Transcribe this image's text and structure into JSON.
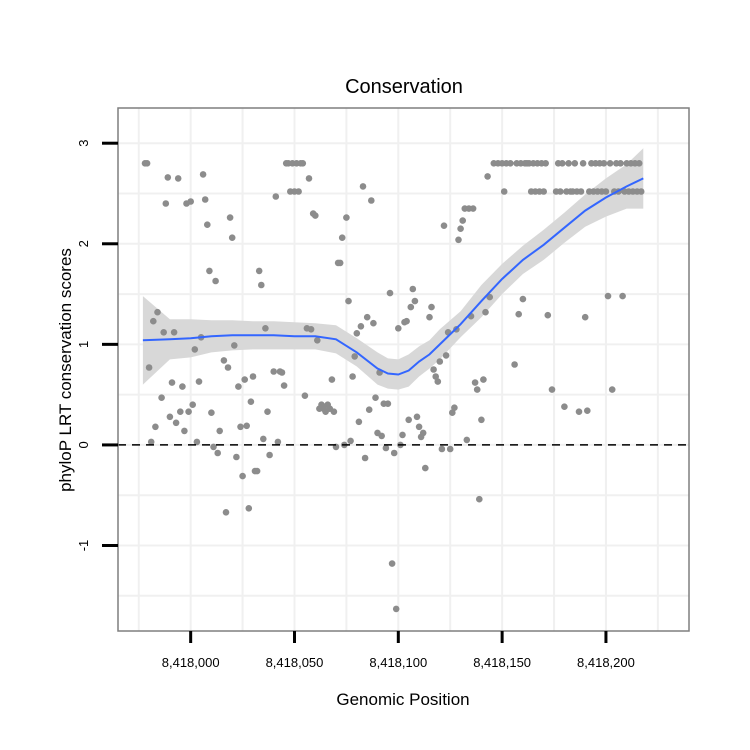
{
  "chart_data": {
    "type": "scatter",
    "title": "Conservation",
    "xlabel": "Genomic Position",
    "ylabel": "phyloP LRT conservation scores",
    "xlim": [
      8417965,
      8418240
    ],
    "ylim": [
      -1.85,
      3.35
    ],
    "x_ticks": [
      8418000,
      8418050,
      8418100,
      8418150,
      8418200
    ],
    "x_tick_labels": [
      "8,418,000",
      "8,418,050",
      "8,418,100",
      "8,418,150",
      "8,418,200"
    ],
    "y_ticks": [
      -1,
      0,
      1,
      2,
      3
    ],
    "y_tick_labels": [
      "-1",
      "0",
      "1",
      "2",
      "3"
    ],
    "reference_line": {
      "y": 0,
      "style": "dashed"
    },
    "colors": {
      "points": "#8c8c8c",
      "smooth": "#3366ff",
      "band": "#d6d6d6",
      "panel_border": "#7f7f7f",
      "grid": "#f0f0f0"
    },
    "series": [
      {
        "name": "scores",
        "points": [
          [
            8417978,
            2.8
          ],
          [
            8417979,
            2.8
          ],
          [
            8417980,
            0.77
          ],
          [
            8417981,
            0.03
          ],
          [
            8417982,
            1.23
          ],
          [
            8417983,
            0.18
          ],
          [
            8417984,
            1.32
          ],
          [
            8417986,
            0.47
          ],
          [
            8417987,
            1.12
          ],
          [
            8417988,
            2.4
          ],
          [
            8417989,
            2.66
          ],
          [
            8417990,
            0.28
          ],
          [
            8417991,
            0.62
          ],
          [
            8417992,
            1.12
          ],
          [
            8417993,
            0.22
          ],
          [
            8417994,
            2.65
          ],
          [
            8417995,
            0.33
          ],
          [
            8417996,
            0.58
          ],
          [
            8417997,
            0.14
          ],
          [
            8417998,
            2.4
          ],
          [
            8417999,
            0.33
          ],
          [
            8418000,
            2.42
          ],
          [
            8418001,
            0.4
          ],
          [
            8418002,
            0.95
          ],
          [
            8418003,
            0.03
          ],
          [
            8418004,
            0.63
          ],
          [
            8418005,
            1.07
          ],
          [
            8418006,
            2.69
          ],
          [
            8418007,
            2.44
          ],
          [
            8418008,
            2.19
          ],
          [
            8418009,
            1.73
          ],
          [
            8418010,
            0.32
          ],
          [
            8418011,
            -0.02
          ],
          [
            8418012,
            1.63
          ],
          [
            8418013,
            -0.08
          ],
          [
            8418014,
            0.14
          ],
          [
            8418016,
            0.84
          ],
          [
            8418017,
            -0.67
          ],
          [
            8418018,
            0.77
          ],
          [
            8418019,
            2.26
          ],
          [
            8418020,
            2.06
          ],
          [
            8418021,
            0.99
          ],
          [
            8418022,
            -0.12
          ],
          [
            8418023,
            0.58
          ],
          [
            8418024,
            0.18
          ],
          [
            8418025,
            -0.31
          ],
          [
            8418026,
            0.65
          ],
          [
            8418027,
            0.19
          ],
          [
            8418028,
            -0.63
          ],
          [
            8418029,
            0.43
          ],
          [
            8418030,
            0.68
          ],
          [
            8418031,
            -0.26
          ],
          [
            8418032,
            -0.26
          ],
          [
            8418033,
            1.73
          ],
          [
            8418034,
            1.59
          ],
          [
            8418035,
            0.06
          ],
          [
            8418036,
            1.16
          ],
          [
            8418037,
            0.33
          ],
          [
            8418038,
            -0.1
          ],
          [
            8418040,
            0.73
          ],
          [
            8418041,
            2.47
          ],
          [
            8418042,
            0.03
          ],
          [
            8418043,
            0.73
          ],
          [
            8418044,
            0.72
          ],
          [
            8418045,
            0.59
          ],
          [
            8418046,
            2.8
          ],
          [
            8418047,
            2.8
          ],
          [
            8418048,
            2.52
          ],
          [
            8418049,
            2.8
          ],
          [
            8418050,
            2.52
          ],
          [
            8418051,
            2.8
          ],
          [
            8418052,
            2.52
          ],
          [
            8418053,
            2.8
          ],
          [
            8418054,
            2.8
          ],
          [
            8418055,
            0.49
          ],
          [
            8418056,
            1.16
          ],
          [
            8418057,
            2.65
          ],
          [
            8418058,
            1.15
          ],
          [
            8418059,
            2.3
          ],
          [
            8418060,
            2.28
          ],
          [
            8418061,
            1.04
          ],
          [
            8418062,
            0.36
          ],
          [
            8418063,
            0.4
          ],
          [
            8418064,
            0.36
          ],
          [
            8418065,
            0.33
          ],
          [
            8418066,
            0.4
          ],
          [
            8418067,
            0.36
          ],
          [
            8418068,
            0.65
          ],
          [
            8418069,
            0.33
          ],
          [
            8418070,
            -0.02
          ],
          [
            8418071,
            1.81
          ],
          [
            8418072,
            1.81
          ],
          [
            8418073,
            2.06
          ],
          [
            8418074,
            0.0
          ],
          [
            8418075,
            2.26
          ],
          [
            8418076,
            1.43
          ],
          [
            8418077,
            0.04
          ],
          [
            8418078,
            0.68
          ],
          [
            8418079,
            0.88
          ],
          [
            8418080,
            1.11
          ],
          [
            8418081,
            0.23
          ],
          [
            8418082,
            1.18
          ],
          [
            8418083,
            2.57
          ],
          [
            8418084,
            -0.13
          ],
          [
            8418085,
            1.27
          ],
          [
            8418086,
            0.35
          ],
          [
            8418087,
            2.43
          ],
          [
            8418088,
            1.21
          ],
          [
            8418089,
            0.47
          ],
          [
            8418090,
            0.12
          ],
          [
            8418091,
            0.72
          ],
          [
            8418092,
            0.09
          ],
          [
            8418093,
            0.41
          ],
          [
            8418094,
            -0.03
          ],
          [
            8418095,
            0.41
          ],
          [
            8418096,
            1.51
          ],
          [
            8418097,
            -1.18
          ],
          [
            8418098,
            -0.08
          ],
          [
            8418099,
            -1.63
          ],
          [
            8418100,
            1.16
          ],
          [
            8418101,
            0.0
          ],
          [
            8418102,
            0.1
          ],
          [
            8418103,
            1.22
          ],
          [
            8418104,
            1.23
          ],
          [
            8418105,
            0.25
          ],
          [
            8418106,
            1.37
          ],
          [
            8418107,
            1.55
          ],
          [
            8418108,
            1.43
          ],
          [
            8418109,
            0.28
          ],
          [
            8418110,
            0.18
          ],
          [
            8418111,
            0.08
          ],
          [
            8418112,
            0.12
          ],
          [
            8418113,
            -0.23
          ],
          [
            8418115,
            1.27
          ],
          [
            8418116,
            1.37
          ],
          [
            8418117,
            0.75
          ],
          [
            8418118,
            0.68
          ],
          [
            8418119,
            0.63
          ],
          [
            8418120,
            0.83
          ],
          [
            8418121,
            -0.04
          ],
          [
            8418122,
            2.18
          ],
          [
            8418123,
            0.89
          ],
          [
            8418124,
            1.12
          ],
          [
            8418125,
            -0.04
          ],
          [
            8418126,
            0.32
          ],
          [
            8418127,
            0.37
          ],
          [
            8418128,
            1.15
          ],
          [
            8418129,
            2.04
          ],
          [
            8418130,
            2.15
          ],
          [
            8418131,
            2.23
          ],
          [
            8418132,
            2.35
          ],
          [
            8418133,
            0.05
          ],
          [
            8418134,
            2.35
          ],
          [
            8418135,
            1.28
          ],
          [
            8418136,
            2.35
          ],
          [
            8418137,
            0.62
          ],
          [
            8418138,
            0.55
          ],
          [
            8418139,
            -0.54
          ],
          [
            8418140,
            0.25
          ],
          [
            8418141,
            0.65
          ],
          [
            8418142,
            1.32
          ],
          [
            8418143,
            2.67
          ],
          [
            8418144,
            1.47
          ],
          [
            8418146,
            2.8
          ],
          [
            8418148,
            2.8
          ],
          [
            8418150,
            2.8
          ],
          [
            8418151,
            2.52
          ],
          [
            8418152,
            2.8
          ],
          [
            8418154,
            2.8
          ],
          [
            8418156,
            0.8
          ],
          [
            8418157,
            2.8
          ],
          [
            8418158,
            1.3
          ],
          [
            8418159,
            2.8
          ],
          [
            8418160,
            1.45
          ],
          [
            8418161,
            2.8
          ],
          [
            8418162,
            2.8
          ],
          [
            8418163,
            2.8
          ],
          [
            8418164,
            2.52
          ],
          [
            8418165,
            2.8
          ],
          [
            8418166,
            2.52
          ],
          [
            8418167,
            2.8
          ],
          [
            8418168,
            2.52
          ],
          [
            8418169,
            2.8
          ],
          [
            8418170,
            2.52
          ],
          [
            8418171,
            2.8
          ],
          [
            8418172,
            1.29
          ],
          [
            8418174,
            0.55
          ],
          [
            8418176,
            2.52
          ],
          [
            8418177,
            2.8
          ],
          [
            8418178,
            2.52
          ],
          [
            8418179,
            2.8
          ],
          [
            8418180,
            0.38
          ],
          [
            8418181,
            2.52
          ],
          [
            8418182,
            2.8
          ],
          [
            8418183,
            2.52
          ],
          [
            8418184,
            2.52
          ],
          [
            8418185,
            2.8
          ],
          [
            8418186,
            2.52
          ],
          [
            8418187,
            0.33
          ],
          [
            8418188,
            2.52
          ],
          [
            8418189,
            2.8
          ],
          [
            8418190,
            1.27
          ],
          [
            8418191,
            0.34
          ],
          [
            8418192,
            2.52
          ],
          [
            8418193,
            2.8
          ],
          [
            8418194,
            2.52
          ],
          [
            8418195,
            2.8
          ],
          [
            8418196,
            2.52
          ],
          [
            8418197,
            2.8
          ],
          [
            8418198,
            2.52
          ],
          [
            8418199,
            2.8
          ],
          [
            8418200,
            2.52
          ],
          [
            8418201,
            1.48
          ],
          [
            8418202,
            2.8
          ],
          [
            8418203,
            0.55
          ],
          [
            8418204,
            2.52
          ],
          [
            8418205,
            2.8
          ],
          [
            8418206,
            2.52
          ],
          [
            8418207,
            2.8
          ],
          [
            8418208,
            1.48
          ],
          [
            8418209,
            2.52
          ],
          [
            8418210,
            2.8
          ],
          [
            8418211,
            2.52
          ],
          [
            8418212,
            2.8
          ],
          [
            8418213,
            2.52
          ],
          [
            8418214,
            2.8
          ],
          [
            8418215,
            2.52
          ],
          [
            8418216,
            2.8
          ],
          [
            8418217,
            2.52
          ]
        ]
      }
    ],
    "smooth": {
      "name": "loess fit",
      "x": [
        8417977,
        8417990,
        8418000,
        8418010,
        8418020,
        8418030,
        8418040,
        8418050,
        8418060,
        8418070,
        8418080,
        8418090,
        8418095,
        8418100,
        8418105,
        8418110,
        8418115,
        8418120,
        8418130,
        8418140,
        8418150,
        8418160,
        8418170,
        8418180,
        8418190,
        8418200,
        8418210,
        8418218
      ],
      "y": [
        1.04,
        1.05,
        1.06,
        1.08,
        1.09,
        1.09,
        1.09,
        1.08,
        1.08,
        1.05,
        0.92,
        0.76,
        0.71,
        0.7,
        0.74,
        0.83,
        0.9,
        1.0,
        1.2,
        1.43,
        1.65,
        1.84,
        1.99,
        2.16,
        2.33,
        2.46,
        2.57,
        2.65
      ],
      "lower": [
        0.6,
        0.85,
        0.87,
        0.92,
        0.94,
        0.95,
        0.95,
        0.95,
        0.95,
        0.91,
        0.78,
        0.6,
        0.56,
        0.55,
        0.58,
        0.68,
        0.76,
        0.85,
        1.07,
        1.27,
        1.5,
        1.7,
        1.84,
        2.01,
        2.17,
        2.27,
        2.35,
        2.35
      ],
      "upper": [
        1.48,
        1.25,
        1.25,
        1.24,
        1.24,
        1.23,
        1.23,
        1.22,
        1.21,
        1.19,
        1.06,
        0.92,
        0.86,
        0.85,
        0.9,
        0.98,
        1.04,
        1.15,
        1.33,
        1.59,
        1.8,
        1.98,
        2.14,
        2.31,
        2.49,
        2.65,
        2.79,
        2.95
      ]
    }
  }
}
